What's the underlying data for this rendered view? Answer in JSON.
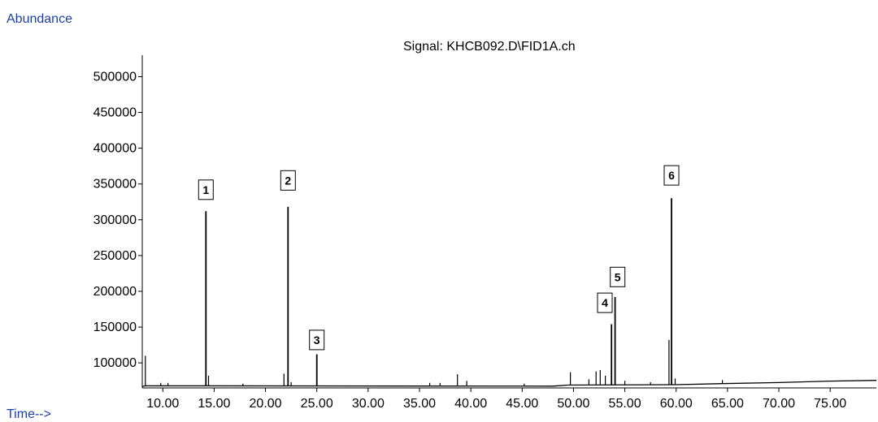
{
  "chart_data": {
    "type": "line",
    "title": "Signal: KHCB092.D\\FID1A.ch",
    "ylabel": "Abundance",
    "xlabel": "Time-->",
    "xlim": [
      8.0,
      79.5
    ],
    "ylim": [
      65000,
      530000
    ],
    "grid": false,
    "legend": "none",
    "series_color": "#000000",
    "baseline": [
      [
        8.0,
        67000
      ],
      [
        8.3,
        68000
      ],
      [
        48.0,
        67500
      ],
      [
        49.5,
        69000
      ],
      [
        60.0,
        69500
      ],
      [
        64.5,
        71000
      ],
      [
        70.0,
        72500
      ],
      [
        75.0,
        74500
      ],
      [
        79.5,
        75500
      ]
    ],
    "peaks": [
      {
        "x": 8.3,
        "y": 110000
      },
      {
        "x": 9.8,
        "y": 72000
      },
      {
        "x": 10.5,
        "y": 72000
      },
      {
        "x": 14.2,
        "y": 312000,
        "label": "1"
      },
      {
        "x": 14.45,
        "y": 82000
      },
      {
        "x": 17.8,
        "y": 71000
      },
      {
        "x": 21.8,
        "y": 85000
      },
      {
        "x": 22.2,
        "y": 318000,
        "label": "2"
      },
      {
        "x": 22.5,
        "y": 73000
      },
      {
        "x": 25.0,
        "y": 112000,
        "label": "3"
      },
      {
        "x": 36.0,
        "y": 72000
      },
      {
        "x": 37.0,
        "y": 72000
      },
      {
        "x": 38.7,
        "y": 84000
      },
      {
        "x": 39.6,
        "y": 75000
      },
      {
        "x": 45.2,
        "y": 71000
      },
      {
        "x": 49.7,
        "y": 87000
      },
      {
        "x": 51.5,
        "y": 77000
      },
      {
        "x": 52.2,
        "y": 88000
      },
      {
        "x": 52.6,
        "y": 90000
      },
      {
        "x": 53.1,
        "y": 82000
      },
      {
        "x": 53.7,
        "y": 154000,
        "label": "4"
      },
      {
        "x": 54.05,
        "y": 192000,
        "label": "5"
      },
      {
        "x": 55.0,
        "y": 75000
      },
      {
        "x": 57.5,
        "y": 73000
      },
      {
        "x": 59.3,
        "y": 132000
      },
      {
        "x": 59.55,
        "y": 330000,
        "label": "6"
      },
      {
        "x": 59.9,
        "y": 78000
      },
      {
        "x": 64.5,
        "y": 76000
      }
    ],
    "peak_labels": [
      {
        "text": "1",
        "x": 14.2,
        "y": 342000
      },
      {
        "text": "2",
        "x": 22.2,
        "y": 355000
      },
      {
        "text": "3",
        "x": 25.0,
        "y": 132000
      },
      {
        "text": "4",
        "x": 53.05,
        "y": 184000
      },
      {
        "text": "5",
        "x": 54.3,
        "y": 220000
      },
      {
        "text": "6",
        "x": 59.55,
        "y": 362000
      }
    ],
    "y_ticks": [
      {
        "value": 100000,
        "label": "100000"
      },
      {
        "value": 150000,
        "label": "150000"
      },
      {
        "value": 200000,
        "label": "200000"
      },
      {
        "value": 250000,
        "label": "250000"
      },
      {
        "value": 300000,
        "label": "300000"
      },
      {
        "value": 350000,
        "label": "350000"
      },
      {
        "value": 400000,
        "label": "400000"
      },
      {
        "value": 450000,
        "label": "450000"
      },
      {
        "value": 500000,
        "label": "500000"
      }
    ],
    "x_ticks": [
      {
        "value": 10,
        "label": "10.00"
      },
      {
        "value": 15,
        "label": "15.00"
      },
      {
        "value": 20,
        "label": "20.00"
      },
      {
        "value": 25,
        "label": "25.00"
      },
      {
        "value": 30,
        "label": "30.00"
      },
      {
        "value": 35,
        "label": "35.00"
      },
      {
        "value": 40,
        "label": "40.00"
      },
      {
        "value": 45,
        "label": "45.00"
      },
      {
        "value": 50,
        "label": "50.00"
      },
      {
        "value": 55,
        "label": "55.00"
      },
      {
        "value": 60,
        "label": "60.00"
      },
      {
        "value": 65,
        "label": "65.00"
      },
      {
        "value": 70,
        "label": "70.00"
      },
      {
        "value": 75,
        "label": "75.00"
      }
    ]
  },
  "labels": {
    "y_axis_name": "Abundance",
    "x_axis_name": "Time-->",
    "signal": "Signal: KHCB092.D\\FID1A.ch"
  },
  "colors": {
    "axis_label_blue": "#1c3fa5",
    "trace": "#000000",
    "background": "#ffffff"
  }
}
